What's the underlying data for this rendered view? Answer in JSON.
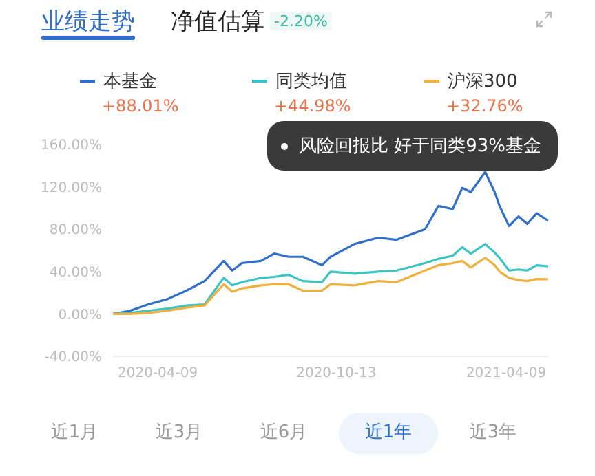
{
  "chart_data": {
    "type": "line",
    "legend": "top",
    "marker": "none",
    "line_style": "solid",
    "x": [
      "2020-02-22",
      "2020-03-11",
      "2020-03-30",
      "2020-04-19",
      "2020-05-09",
      "2020-05-28",
      "2020-06-17",
      "2020-06-26",
      "2020-07-06",
      "2020-07-26",
      "2020-08-09",
      "2020-08-24",
      "2020-09-08",
      "2020-09-28",
      "2020-10-07",
      "2020-11-01",
      "2020-11-26",
      "2020-12-15",
      "2021-01-14",
      "2021-01-28",
      "2021-02-12",
      "2021-02-22",
      "2021-03-03",
      "2021-03-18",
      "2021-03-28",
      "2021-04-02",
      "2021-04-12",
      "2021-04-22",
      "2021-05-01",
      "2021-05-11",
      "2021-05-23"
    ],
    "series": [
      {
        "name": "本基金",
        "color": "#2f6ecb",
        "values": [
          0,
          3,
          9,
          14,
          22,
          31,
          50,
          41,
          48,
          50,
          57,
          54,
          54,
          46,
          54,
          66,
          72,
          70,
          80,
          102,
          99,
          119,
          115,
          134,
          115,
          102,
          83,
          92,
          85,
          95,
          88.01
        ]
      },
      {
        "name": "同类均值",
        "color": "#3cc4c4",
        "values": [
          0,
          1,
          3,
          5,
          8,
          9,
          34,
          27,
          30,
          34,
          35,
          37,
          31,
          30,
          40,
          38,
          40,
          41,
          48,
          52,
          55,
          63,
          57,
          66,
          58,
          53,
          41,
          42,
          41,
          46,
          44.98
        ]
      },
      {
        "name": "沪深300",
        "color": "#f0b040",
        "values": [
          0,
          0,
          1,
          3,
          6,
          8,
          28,
          21,
          24,
          27,
          28,
          28,
          22,
          22,
          28,
          27,
          31,
          30,
          41,
          46,
          48,
          50,
          44,
          53,
          46,
          40,
          34,
          32,
          31,
          33,
          32.76
        ]
      }
    ],
    "xlim": [
      "2020-02-22",
      "2021-05-23"
    ],
    "xticks": [
      {
        "value": "2020-04-09",
        "label": "2020-04-09"
      },
      {
        "value": "2020-10-13",
        "label": "2020-10-13"
      },
      {
        "value": "2021-04-09",
        "label": "2021-04-09"
      }
    ],
    "ylim": [
      -40,
      160
    ],
    "yticks": [
      {
        "value": -40,
        "label": "-40.00%"
      },
      {
        "value": 0,
        "label": "0.00%"
      },
      {
        "value": 40,
        "label": "40.00%"
      },
      {
        "value": 80,
        "label": "80.00%"
      },
      {
        "value": 120,
        "label": "120.00%"
      },
      {
        "value": 160,
        "label": "160.00%"
      }
    ],
    "annotations": [
      "业绩走势",
      "净值估算",
      "-2.20%",
      "+88.01%",
      "+44.98%",
      "+32.76%",
      "风险回报比 好于同类93%基金",
      "近1月",
      "近3月",
      "近6月",
      "近1年",
      "近3年"
    ]
  }
}
